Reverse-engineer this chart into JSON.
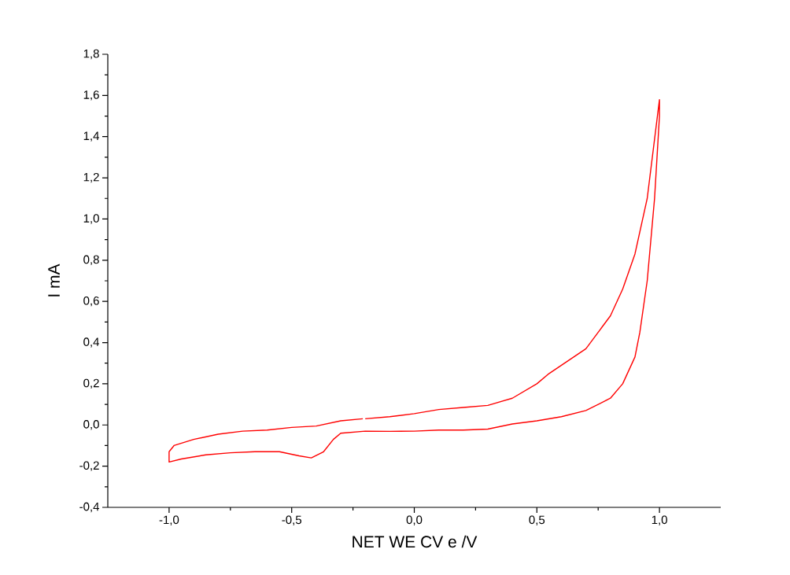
{
  "chart_data": {
    "type": "line",
    "xlabel": "NET WE CV  e /V",
    "ylabel": "I mA",
    "xlim": [
      -1.25,
      1.25
    ],
    "ylim": [
      -0.4,
      1.8
    ],
    "xticks": [
      {
        "value": -1.0,
        "label": "-1,0"
      },
      {
        "value": -0.5,
        "label": "-0,5"
      },
      {
        "value": 0.0,
        "label": "0,0"
      },
      {
        "value": 0.5,
        "label": "0,5"
      },
      {
        "value": 1.0,
        "label": "1,0"
      }
    ],
    "yticks": [
      {
        "value": -0.4,
        "label": "-0,4"
      },
      {
        "value": -0.2,
        "label": "-0,2"
      },
      {
        "value": 0.0,
        "label": "0,0"
      },
      {
        "value": 0.2,
        "label": "0,2"
      },
      {
        "value": 0.4,
        "label": "0,4"
      },
      {
        "value": 0.6,
        "label": "0,6"
      },
      {
        "value": 0.8,
        "label": "0,8"
      },
      {
        "value": 1.0,
        "label": "1,0"
      },
      {
        "value": 1.2,
        "label": "1,2"
      },
      {
        "value": 1.4,
        "label": "1,4"
      },
      {
        "value": 1.6,
        "label": "1,6"
      },
      {
        "value": 1.8,
        "label": "1,8"
      }
    ],
    "grid": false,
    "marker": "none",
    "line_style": "solid",
    "series": [
      {
        "color": "#ff0000",
        "x": [
          -0.2,
          -0.1,
          0.0,
          0.1,
          0.2,
          0.3,
          0.4,
          0.5,
          0.55,
          0.6,
          0.7,
          0.8,
          0.85,
          0.9,
          0.95,
          1.0,
          1.0,
          0.98,
          0.95,
          0.92,
          0.9,
          0.85,
          0.8,
          0.7,
          0.6,
          0.5,
          0.4,
          0.3,
          0.2,
          0.1,
          0.0,
          -0.1,
          -0.2,
          -0.3,
          -0.33,
          -0.37,
          -0.42,
          -0.47,
          -0.55,
          -0.65,
          -0.75,
          -0.85,
          -0.95,
          -1.0,
          -1.0,
          -0.98,
          -0.9,
          -0.8,
          -0.7,
          -0.6,
          -0.5,
          -0.4,
          -0.3,
          -0.21
        ],
        "values": [
          0.03,
          0.04,
          0.055,
          0.075,
          0.085,
          0.095,
          0.13,
          0.2,
          0.25,
          0.29,
          0.37,
          0.53,
          0.66,
          0.83,
          1.1,
          1.58,
          1.5,
          1.1,
          0.7,
          0.45,
          0.33,
          0.2,
          0.13,
          0.07,
          0.04,
          0.02,
          0.005,
          -0.02,
          -0.025,
          -0.025,
          -0.03,
          -0.031,
          -0.03,
          -0.04,
          -0.07,
          -0.13,
          -0.16,
          -0.15,
          -0.13,
          -0.13,
          -0.135,
          -0.145,
          -0.165,
          -0.18,
          -0.13,
          -0.1,
          -0.07,
          -0.045,
          -0.03,
          -0.025,
          -0.012,
          -0.005,
          0.02,
          0.03
        ]
      }
    ]
  }
}
